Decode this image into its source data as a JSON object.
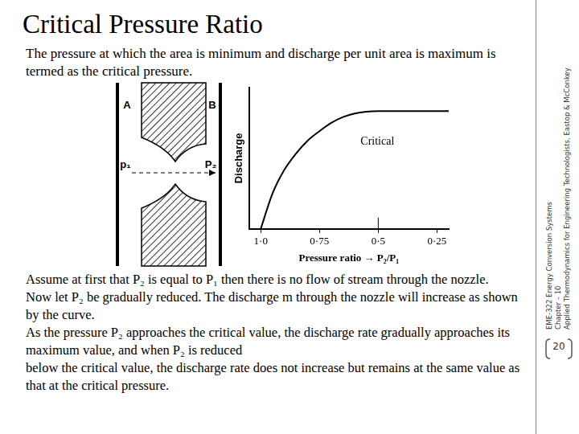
{
  "title": "Critical Pressure Ratio",
  "intro": "The pressure at which the area is minimum and discharge per unit area is maximum is termed as the critical pressure.",
  "diagram": {
    "labels": [
      "A",
      "B",
      "p₁",
      "P₂"
    ]
  },
  "chart_data": {
    "type": "line",
    "x_label": "Pressure ratio → P₂/P₁",
    "y_label": "Discharge",
    "annotations": [
      "Critical"
    ],
    "x": [
      1.0,
      0.95,
      0.9,
      0.85,
      0.8,
      0.75,
      0.7,
      0.65,
      0.6,
      0.55,
      0.5,
      0.45,
      0.4,
      0.35,
      0.3,
      0.25,
      0.2
    ],
    "values": [
      0,
      0.3,
      0.5,
      0.64,
      0.75,
      0.83,
      0.9,
      0.95,
      0.98,
      0.995,
      1.0,
      1.0,
      1.0,
      1.0,
      1.0,
      1.0,
      1.0
    ],
    "color": "#000000",
    "xlim": [
      1.05,
      0.2
    ],
    "xticks": [
      {
        "value": 1.0,
        "label": "1·0"
      },
      {
        "value": 0.75,
        "label": "0·75"
      },
      {
        "value": 0.5,
        "label": "0·5"
      },
      {
        "value": 0.25,
        "label": "0·25"
      }
    ],
    "ylim": [
      0,
      1.2
    ],
    "tick_labels": "x",
    "grid": false
  },
  "body": [
    "Assume at first that P₂ is equal to P₁ then there is no flow of stream through the nozzle.",
    "Now let P₂ be gradually reduced. The discharge m through the nozzle will increase as shown by the curve.",
    "As the pressure P₂ approaches the critical value, the discharge rate gradually approaches its maximum value, and when P₂ is reduced",
    "below the critical value, the discharge rate does not increase but remains at the same value as that at the critical pressure."
  ],
  "sidebar": [
    "EME-322 Energy Conversion Systems",
    "Chapter – 10",
    "Applied Thermodynamics for Engineering Technologists, Eastop & McConkey"
  ],
  "page_number": "20"
}
